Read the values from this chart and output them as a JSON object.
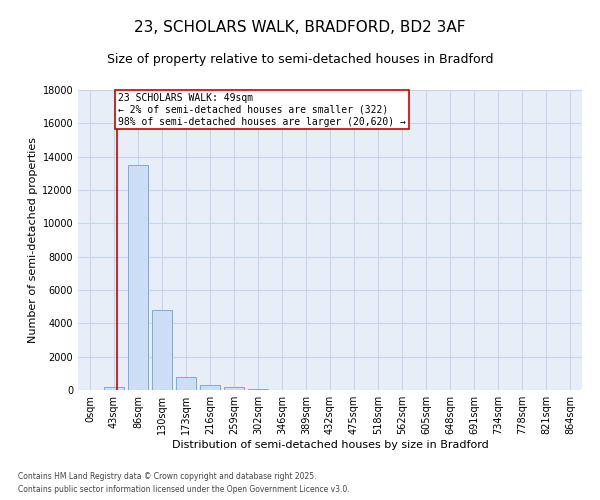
{
  "title": "23, SCHOLARS WALK, BRADFORD, BD2 3AF",
  "subtitle": "Size of property relative to semi-detached houses in Bradford",
  "xlabel": "Distribution of semi-detached houses by size in Bradford",
  "ylabel": "Number of semi-detached properties",
  "categories": [
    "0sqm",
    "43sqm",
    "86sqm",
    "130sqm",
    "173sqm",
    "216sqm",
    "259sqm",
    "302sqm",
    "346sqm",
    "389sqm",
    "432sqm",
    "475sqm",
    "518sqm",
    "562sqm",
    "605sqm",
    "648sqm",
    "691sqm",
    "734sqm",
    "778sqm",
    "821sqm",
    "864sqm"
  ],
  "bar_values": [
    0,
    200,
    13500,
    4800,
    800,
    300,
    200,
    80,
    0,
    0,
    0,
    0,
    0,
    0,
    0,
    0,
    0,
    0,
    0,
    0,
    0
  ],
  "bar_color": "#ccddf5",
  "bar_edge_color": "#7aadd4",
  "ylim": [
    0,
    18000
  ],
  "yticks": [
    0,
    2000,
    4000,
    6000,
    8000,
    10000,
    12000,
    14000,
    16000,
    18000
  ],
  "property_line_x": 1.12,
  "annotation_title": "23 SCHOLARS WALK: 49sqm",
  "annotation_line1": "← 2% of semi-detached houses are smaller (322)",
  "annotation_line2": "98% of semi-detached houses are larger (20,620) →",
  "annotation_color": "#cc0000",
  "background_color": "#e8eef8",
  "grid_color": "#c8d4e8",
  "footer1": "Contains HM Land Registry data © Crown copyright and database right 2025.",
  "footer2": "Contains public sector information licensed under the Open Government Licence v3.0.",
  "title_fontsize": 11,
  "subtitle_fontsize": 9,
  "ylabel_fontsize": 8,
  "xlabel_fontsize": 8,
  "tick_fontsize": 7,
  "bar_width": 0.85
}
